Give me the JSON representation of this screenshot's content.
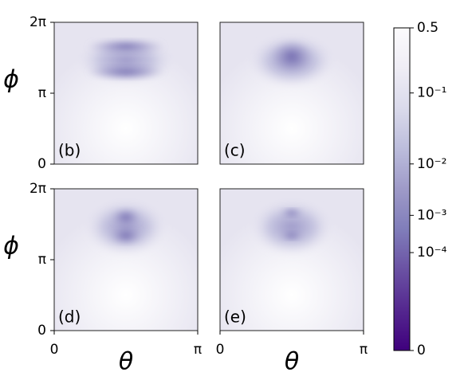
{
  "chart_data": {
    "type": "heatmap",
    "panels": [
      {
        "label": "(b)"
      },
      {
        "label": "(c)"
      },
      {
        "label": "(d)"
      },
      {
        "label": "(e)"
      }
    ],
    "xlabel": "θ",
    "ylabel": "ϕ",
    "xlim": [
      0,
      3.141592653589793
    ],
    "xticks": [
      0,
      {
        "value": 3.141592653589793,
        "label": "π"
      }
    ],
    "ylim": [
      0,
      6.283185307179586
    ],
    "yticks": [
      0,
      {
        "value": 3.141592653589793,
        "label": "π"
      },
      {
        "value": 6.283185307179586,
        "label": "2π"
      }
    ],
    "colorbar": {
      "lim": [
        0,
        0.5
      ],
      "scale": "power",
      "gamma": 0.14,
      "colors": [
        "#fcfbfd",
        "#efedf5",
        "#dadaeb",
        "#bcbddc",
        "#9e9ac8",
        "#807dba",
        "#6a51a3",
        "#54278f",
        "#3f007d"
      ],
      "ticks": [
        0.5,
        {
          "value": 0.1,
          "label": "10⁻¹"
        },
        {
          "value": 0.01,
          "label": "10⁻²"
        },
        {
          "value": 0.001,
          "label": "10⁻³"
        },
        {
          "value": 0.0001,
          "label": "10⁻⁴"
        },
        0
      ]
    }
  }
}
